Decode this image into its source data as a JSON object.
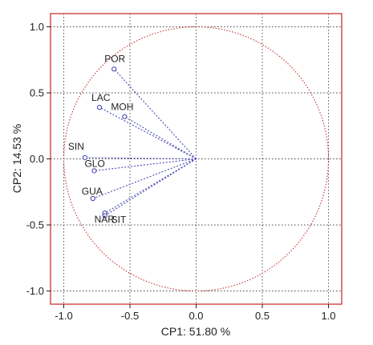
{
  "chart_data": {
    "type": "scatter",
    "title": "",
    "xlabel": "CP1: 51.80 %",
    "ylabel": "CP2: 14.53 %",
    "xlim": [
      -1.1,
      1.1
    ],
    "ylim": [
      -1.1,
      1.1
    ],
    "x_ticks": [
      "-1.0",
      "-0.5",
      "0.0",
      "0.5",
      "1.0"
    ],
    "y_ticks": [
      "1.0",
      "0.5",
      "0.0",
      "-0.5",
      "-1.0"
    ],
    "grid": true,
    "unit_circle": true,
    "points": [
      {
        "label": "POR",
        "x": -0.62,
        "y": 0.68
      },
      {
        "label": "LAC",
        "x": -0.73,
        "y": 0.39
      },
      {
        "label": "MOH",
        "x": -0.54,
        "y": 0.32
      },
      {
        "label": "SIN",
        "x": -0.84,
        "y": 0.01
      },
      {
        "label": "GLO",
        "x": -0.77,
        "y": -0.09
      },
      {
        "label": "GUA",
        "x": -0.78,
        "y": -0.3
      },
      {
        "label": "NAR",
        "x": -0.69,
        "y": -0.41
      },
      {
        "label": "SIT",
        "x": -0.69,
        "y": -0.43
      }
    ],
    "colors": {
      "frame": "#cc3333",
      "circle": "#cc3333",
      "vectors": "#3a3ab0",
      "grid": "#444444"
    }
  }
}
